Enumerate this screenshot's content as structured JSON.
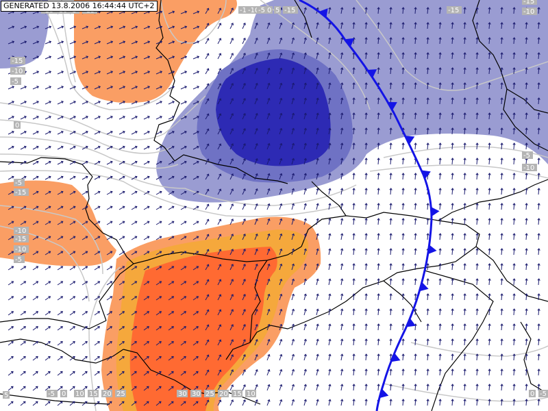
{
  "header": {
    "generated": "GENERATED 13.8.2006 16:44:44 UTC+2"
  },
  "colors": {
    "warm_light": "#fa9e64",
    "warm_mid": "#f5a83c",
    "warm_strong": "#ff6a32",
    "cold_light": "#9a9cd2",
    "cold_mid": "#6f72c4",
    "cold_strong": "#2d2ab4",
    "isoline": "#c8c8c8",
    "border": "#000000",
    "front": "#1414e6",
    "arrows": "#1a1a6e"
  },
  "isoline_labels": [
    "-15",
    "-10",
    "-5",
    "0",
    "-15",
    "-10",
    "-5",
    "-15",
    "-15",
    "-15",
    "-10",
    "-5",
    "0",
    "5",
    "-15",
    "-15",
    "-10",
    "-5",
    "-10",
    "-5",
    "-15",
    "-10",
    "-15",
    "-10",
    "-5",
    "-5",
    "0",
    "10",
    "15",
    "20",
    "25",
    "30",
    "30",
    "25",
    "20",
    "15",
    "10",
    "5",
    "0",
    "-5"
  ],
  "front": {
    "type": "cold-front",
    "triangle_count": 12
  }
}
